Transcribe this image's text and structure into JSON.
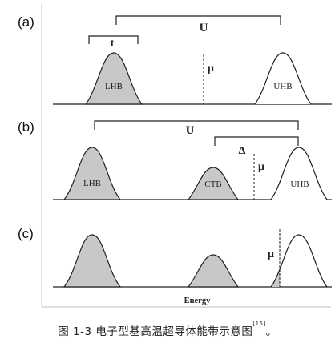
{
  "panels": [
    {
      "id": "a",
      "label": "(a)",
      "U": "U",
      "t": "t",
      "mu": "μ",
      "lhb": "LHB",
      "uhb": "UHB"
    },
    {
      "id": "b",
      "label": "(b)",
      "U": "U",
      "delta": "Δ",
      "mu": "μ",
      "lhb": "LHB",
      "ctb": "CTB",
      "uhb": "UHB"
    },
    {
      "id": "c",
      "label": "(c)",
      "mu": "μ",
      "xlabel": "Energy"
    }
  ],
  "caption": {
    "text": "图 1-3  电子型基高温超导体能带示意图",
    "ref": "[15]",
    "end": "。"
  },
  "colors": {
    "fill": "#c8c8c8",
    "stroke": "#222222",
    "frame": "#bfbfbf"
  }
}
